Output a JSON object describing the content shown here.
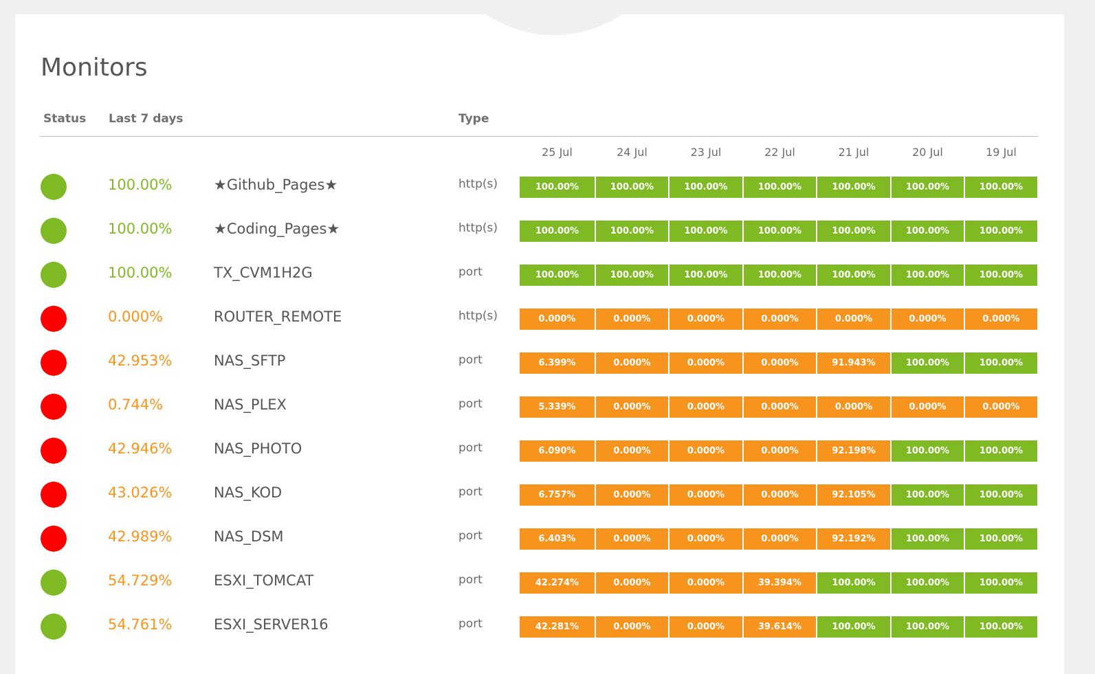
{
  "page": {
    "title": "Monitors"
  },
  "headers": {
    "status": "Status",
    "last7": "Last 7 days",
    "type": "Type"
  },
  "dates": [
    "25 Jul",
    "24 Jul",
    "23 Jul",
    "22 Jul",
    "21 Jul",
    "20 Jul",
    "19 Jul"
  ],
  "colors": {
    "up": "#7fba24",
    "down": "#ff0000",
    "warn": "#f7941e"
  },
  "monitors": [
    {
      "status": "up",
      "uptime": "100.00%",
      "uptime_level": "good",
      "name": "★Github_Pages★",
      "type": "http(s)",
      "daily": [
        [
          "100.00%",
          "g"
        ],
        [
          "100.00%",
          "g"
        ],
        [
          "100.00%",
          "g"
        ],
        [
          "100.00%",
          "g"
        ],
        [
          "100.00%",
          "g"
        ],
        [
          "100.00%",
          "g"
        ],
        [
          "100.00%",
          "g"
        ]
      ]
    },
    {
      "status": "up",
      "uptime": "100.00%",
      "uptime_level": "good",
      "name": "★Coding_Pages★",
      "type": "http(s)",
      "daily": [
        [
          "100.00%",
          "g"
        ],
        [
          "100.00%",
          "g"
        ],
        [
          "100.00%",
          "g"
        ],
        [
          "100.00%",
          "g"
        ],
        [
          "100.00%",
          "g"
        ],
        [
          "100.00%",
          "g"
        ],
        [
          "100.00%",
          "g"
        ]
      ]
    },
    {
      "status": "up",
      "uptime": "100.00%",
      "uptime_level": "good",
      "name": "TX_CVM1H2G",
      "type": "port",
      "daily": [
        [
          "100.00%",
          "g"
        ],
        [
          "100.00%",
          "g"
        ],
        [
          "100.00%",
          "g"
        ],
        [
          "100.00%",
          "g"
        ],
        [
          "100.00%",
          "g"
        ],
        [
          "100.00%",
          "g"
        ],
        [
          "100.00%",
          "g"
        ]
      ]
    },
    {
      "status": "down",
      "uptime": "0.000%",
      "uptime_level": "bad",
      "name": "ROUTER_REMOTE",
      "type": "http(s)",
      "daily": [
        [
          "0.000%",
          "o"
        ],
        [
          "0.000%",
          "o"
        ],
        [
          "0.000%",
          "o"
        ],
        [
          "0.000%",
          "o"
        ],
        [
          "0.000%",
          "o"
        ],
        [
          "0.000%",
          "o"
        ],
        [
          "0.000%",
          "o"
        ]
      ]
    },
    {
      "status": "down",
      "uptime": "42.953%",
      "uptime_level": "bad",
      "name": "NAS_SFTP",
      "type": "port",
      "daily": [
        [
          "6.399%",
          "o"
        ],
        [
          "0.000%",
          "o"
        ],
        [
          "0.000%",
          "o"
        ],
        [
          "0.000%",
          "o"
        ],
        [
          "91.943%",
          "o"
        ],
        [
          "100.00%",
          "g"
        ],
        [
          "100.00%",
          "g"
        ]
      ]
    },
    {
      "status": "down",
      "uptime": "0.744%",
      "uptime_level": "bad",
      "name": "NAS_PLEX",
      "type": "port",
      "daily": [
        [
          "5.339%",
          "o"
        ],
        [
          "0.000%",
          "o"
        ],
        [
          "0.000%",
          "o"
        ],
        [
          "0.000%",
          "o"
        ],
        [
          "0.000%",
          "o"
        ],
        [
          "0.000%",
          "o"
        ],
        [
          "0.000%",
          "o"
        ]
      ]
    },
    {
      "status": "down",
      "uptime": "42.946%",
      "uptime_level": "bad",
      "name": "NAS_PHOTO",
      "type": "port",
      "daily": [
        [
          "6.090%",
          "o"
        ],
        [
          "0.000%",
          "o"
        ],
        [
          "0.000%",
          "o"
        ],
        [
          "0.000%",
          "o"
        ],
        [
          "92.198%",
          "o"
        ],
        [
          "100.00%",
          "g"
        ],
        [
          "100.00%",
          "g"
        ]
      ]
    },
    {
      "status": "down",
      "uptime": "43.026%",
      "uptime_level": "bad",
      "name": "NAS_KOD",
      "type": "port",
      "daily": [
        [
          "6.757%",
          "o"
        ],
        [
          "0.000%",
          "o"
        ],
        [
          "0.000%",
          "o"
        ],
        [
          "0.000%",
          "o"
        ],
        [
          "92.105%",
          "o"
        ],
        [
          "100.00%",
          "g"
        ],
        [
          "100.00%",
          "g"
        ]
      ]
    },
    {
      "status": "down",
      "uptime": "42.989%",
      "uptime_level": "bad",
      "name": "NAS_DSM",
      "type": "port",
      "daily": [
        [
          "6.403%",
          "o"
        ],
        [
          "0.000%",
          "o"
        ],
        [
          "0.000%",
          "o"
        ],
        [
          "0.000%",
          "o"
        ],
        [
          "92.192%",
          "o"
        ],
        [
          "100.00%",
          "g"
        ],
        [
          "100.00%",
          "g"
        ]
      ]
    },
    {
      "status": "up",
      "uptime": "54.729%",
      "uptime_level": "bad",
      "name": "ESXI_TOMCAT",
      "type": "port",
      "daily": [
        [
          "42.274%",
          "o"
        ],
        [
          "0.000%",
          "o"
        ],
        [
          "0.000%",
          "o"
        ],
        [
          "39.394%",
          "o"
        ],
        [
          "100.00%",
          "g"
        ],
        [
          "100.00%",
          "g"
        ],
        [
          "100.00%",
          "g"
        ]
      ]
    },
    {
      "status": "up",
      "uptime": "54.761%",
      "uptime_level": "bad",
      "name": "ESXI_SERVER16",
      "type": "port",
      "daily": [
        [
          "42.281%",
          "o"
        ],
        [
          "0.000%",
          "o"
        ],
        [
          "0.000%",
          "o"
        ],
        [
          "39.614%",
          "o"
        ],
        [
          "100.00%",
          "g"
        ],
        [
          "100.00%",
          "g"
        ],
        [
          "100.00%",
          "g"
        ]
      ]
    }
  ]
}
